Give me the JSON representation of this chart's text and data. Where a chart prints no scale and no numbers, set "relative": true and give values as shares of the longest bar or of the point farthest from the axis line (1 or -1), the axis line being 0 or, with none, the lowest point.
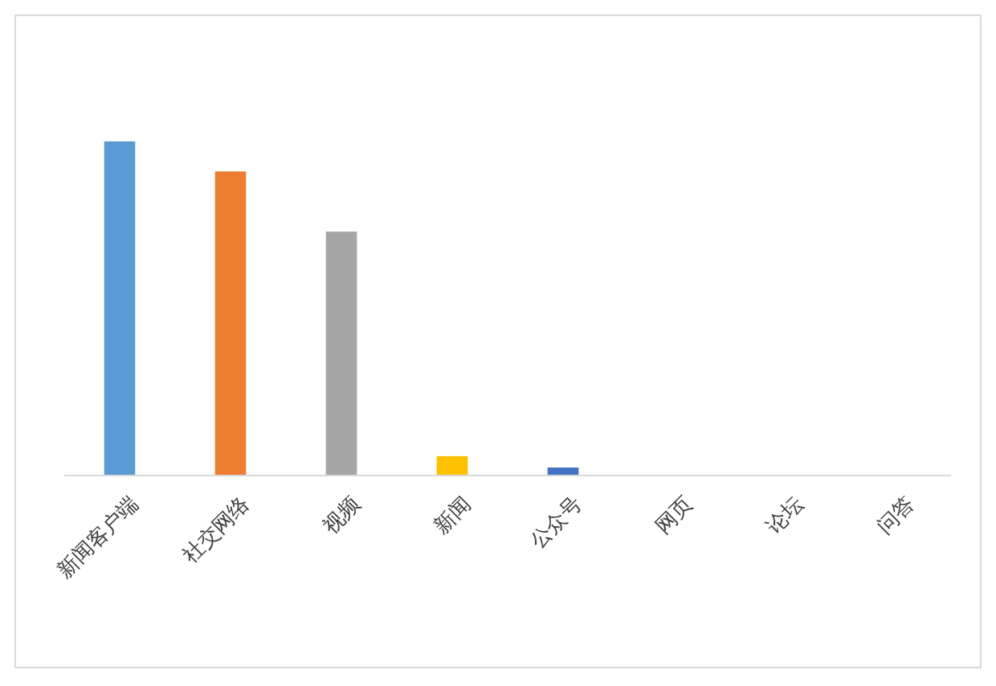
{
  "chart_data": {
    "type": "bar",
    "relative": true,
    "categories": [
      "新闻客户端",
      "社交网络",
      "视频",
      "新闻",
      "公众号",
      "网页",
      "论坛",
      "问答"
    ],
    "values": [
      1,
      0.91,
      0.73,
      0.058,
      0.024,
      0,
      0,
      0
    ],
    "colors": [
      "#5b9bd5",
      "#ed7d31",
      "#a5a5a5",
      "#ffc000",
      "#4472c4",
      "#70ad47",
      "#264478",
      "#9e480e"
    ]
  }
}
